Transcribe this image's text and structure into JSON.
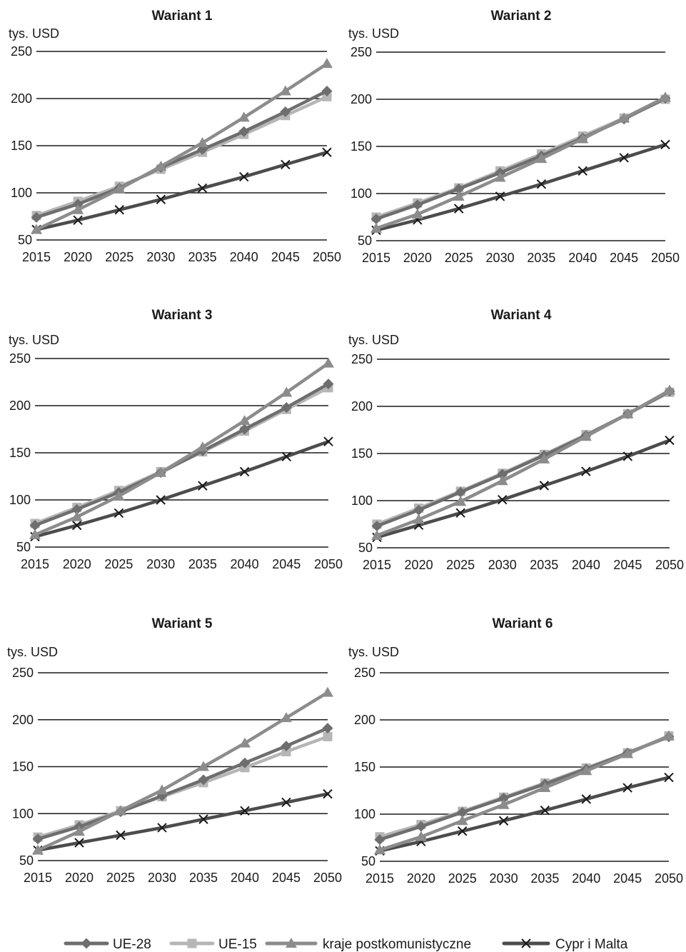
{
  "chart_data": [
    {
      "type": "line",
      "title": "Wariant 1",
      "ylabel": "tys. USD",
      "x": [
        "2015",
        "2020",
        "2025",
        "2030",
        "2035",
        "2040",
        "2045",
        "2050"
      ],
      "ylim": [
        50,
        250
      ],
      "yticks": [
        "50",
        "100",
        "150",
        "200",
        "250"
      ],
      "grid": true,
      "series": [
        {
          "name": "UE-28",
          "values": [
            74,
            88,
            105,
            127,
            146,
            165,
            186,
            208
          ]
        },
        {
          "name": "UE-15",
          "values": [
            76,
            91,
            107,
            125,
            143,
            162,
            182,
            202
          ]
        },
        {
          "name": "kraje postkomunistyczne",
          "values": [
            61,
            82,
            104,
            128,
            153,
            180,
            208,
            237
          ]
        },
        {
          "name": "Cypr i Malta",
          "values": [
            61,
            71,
            82,
            93,
            105,
            117,
            130,
            143
          ]
        }
      ]
    },
    {
      "type": "line",
      "title": "Wariant 2",
      "ylabel": "tys. USD",
      "x": [
        "2015",
        "2020",
        "2025",
        "2030",
        "2035",
        "2040",
        "2045",
        "2050"
      ],
      "ylim": [
        50,
        250
      ],
      "yticks": [
        "50",
        "100",
        "150",
        "200",
        "250"
      ],
      "grid": true,
      "series": [
        {
          "name": "UE-28",
          "values": [
            73,
            88,
            105,
            122,
            140,
            159,
            179,
            201
          ]
        },
        {
          "name": "UE-15",
          "values": [
            75,
            90,
            106,
            124,
            142,
            161,
            180,
            200
          ]
        },
        {
          "name": "kraje postkomunistyczne",
          "values": [
            63,
            78,
            97,
            117,
            137,
            158,
            180,
            202
          ]
        },
        {
          "name": "Cypr i Malta",
          "values": [
            61,
            72,
            84,
            97,
            110,
            124,
            138,
            152
          ]
        }
      ]
    },
    {
      "type": "line",
      "title": "Wariant 3",
      "ylabel": "tys. USD",
      "x": [
        "2015",
        "2020",
        "2025",
        "2030",
        "2035",
        "2040",
        "2045",
        "2050"
      ],
      "ylim": [
        50,
        250
      ],
      "yticks": [
        "50",
        "100",
        "150",
        "200",
        "250"
      ],
      "grid": true,
      "series": [
        {
          "name": "UE-28",
          "values": [
            73,
            90,
            108,
            129,
            152,
            175,
            198,
            223
          ]
        },
        {
          "name": "UE-15",
          "values": [
            75,
            92,
            110,
            130,
            151,
            173,
            196,
            219
          ]
        },
        {
          "name": "kraje postkomunistyczne",
          "values": [
            63,
            82,
            104,
            129,
            156,
            184,
            214,
            245
          ]
        },
        {
          "name": "Cypr i Malta",
          "values": [
            61,
            73,
            86,
            100,
            115,
            130,
            146,
            162
          ]
        }
      ]
    },
    {
      "type": "line",
      "title": "Wariant 4",
      "ylabel": "tys. USD",
      "x": [
        "2015",
        "2020",
        "2025",
        "2030",
        "2035",
        "2040",
        "2045",
        "2050"
      ],
      "ylim": [
        50,
        250
      ],
      "yticks": [
        "50",
        "100",
        "150",
        "200",
        "250"
      ],
      "grid": true,
      "series": [
        {
          "name": "UE-28",
          "values": [
            73,
            90,
            109,
            128,
            148,
            169,
            192,
            216
          ]
        },
        {
          "name": "UE-15",
          "values": [
            75,
            92,
            110,
            129,
            149,
            170,
            192,
            215
          ]
        },
        {
          "name": "kraje postkomunistyczne",
          "values": [
            63,
            80,
            99,
            121,
            144,
            168,
            192,
            217
          ]
        },
        {
          "name": "Cypr i Malta",
          "values": [
            61,
            74,
            87,
            101,
            116,
            131,
            147,
            164
          ]
        }
      ]
    },
    {
      "type": "line",
      "title": "Wariant 5",
      "ylabel": "tys. USD",
      "x": [
        "2015",
        "2020",
        "2025",
        "2030",
        "2035",
        "2040",
        "2045",
        "2050"
      ],
      "ylim": [
        50,
        250
      ],
      "yticks": [
        "50",
        "100",
        "150",
        "200",
        "250"
      ],
      "grid": true,
      "series": [
        {
          "name": "UE-28",
          "values": [
            73,
            86,
            102,
            119,
            136,
            154,
            172,
            191
          ]
        },
        {
          "name": "UE-15",
          "values": [
            75,
            88,
            103,
            118,
            133,
            149,
            166,
            182
          ]
        },
        {
          "name": "kraje postkomunistyczne",
          "values": [
            61,
            81,
            103,
            125,
            150,
            175,
            202,
            229
          ]
        },
        {
          "name": "Cypr i Malta",
          "values": [
            61,
            69,
            77,
            85,
            94,
            103,
            112,
            121
          ]
        }
      ]
    },
    {
      "type": "line",
      "title": "Wariant 6",
      "ylabel": "tys. USD",
      "x": [
        "2015",
        "2020",
        "2025",
        "2030",
        "2035",
        "2040",
        "2045",
        "2050"
      ],
      "ylim": [
        50,
        250
      ],
      "yticks": [
        "50",
        "100",
        "150",
        "200",
        "250"
      ],
      "grid": true,
      "series": [
        {
          "name": "UE-28",
          "values": [
            73,
            87,
            102,
            117,
            132,
            148,
            165,
            182
          ]
        },
        {
          "name": "UE-15",
          "values": [
            76,
            89,
            103,
            118,
            133,
            149,
            165,
            183
          ]
        },
        {
          "name": "kraje postkomunistyczne",
          "values": [
            62,
            76,
            93,
            110,
            128,
            146,
            164,
            183
          ]
        },
        {
          "name": "Cypr i Malta",
          "values": [
            61,
            71,
            82,
            93,
            104,
            116,
            128,
            139
          ]
        }
      ]
    }
  ],
  "legend": {
    "placement": "bottom",
    "items": [
      {
        "name": "UE-28",
        "color": "#6e6e6e",
        "marker": "diamond"
      },
      {
        "name": "UE-15",
        "color": "#b6b6b6",
        "marker": "square"
      },
      {
        "name": "kraje postkomunistyczne",
        "color": "#8c8c8c",
        "marker": "triangle"
      },
      {
        "name": "Cypr i Malta",
        "color": "#4c4c4c",
        "marker": "cross"
      }
    ]
  }
}
